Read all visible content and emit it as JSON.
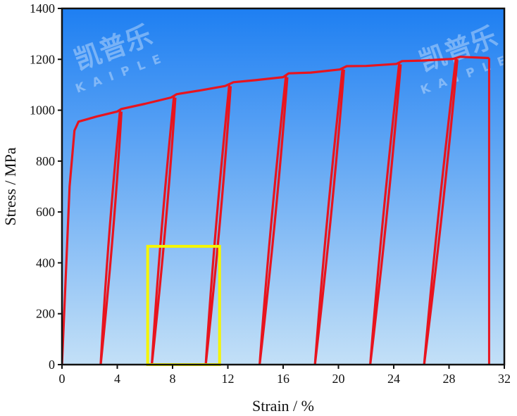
{
  "watermark": {
    "text_cn": "凯普乐",
    "text_en": "KAIPLE"
  },
  "chart_data": {
    "type": "line",
    "xlabel": "Strain / %",
    "ylabel": "Stress / MPa",
    "xlim": [
      0,
      32
    ],
    "ylim": [
      0,
      1400
    ],
    "xticks": [
      0,
      4,
      8,
      12,
      16,
      20,
      24,
      28,
      32
    ],
    "yticks": [
      0,
      200,
      400,
      600,
      800,
      1000,
      1200,
      1400
    ],
    "grid": false,
    "background": {
      "gradient_top": "#1e7ff2",
      "gradient_bottom": "#c3e0f7"
    },
    "series": [
      {
        "color": "#e8141e",
        "envelope": [
          [
            0.0,
            0
          ],
          [
            0.55,
            700
          ],
          [
            0.9,
            920
          ],
          [
            1.2,
            955
          ],
          [
            2.5,
            975
          ],
          [
            4.0,
            995
          ],
          [
            4.3,
            1005
          ],
          [
            6.0,
            1025
          ],
          [
            7.9,
            1050
          ],
          [
            8.3,
            1063
          ],
          [
            10.0,
            1078
          ],
          [
            11.8,
            1095
          ],
          [
            12.4,
            1110
          ],
          [
            14.0,
            1118
          ],
          [
            16.0,
            1130
          ],
          [
            16.4,
            1145
          ],
          [
            18.0,
            1148
          ],
          [
            20.1,
            1160
          ],
          [
            20.6,
            1173
          ],
          [
            22.0,
            1174
          ],
          [
            24.2,
            1182
          ],
          [
            24.6,
            1193
          ],
          [
            26.0,
            1195
          ],
          [
            28.3,
            1202
          ],
          [
            28.8,
            1210
          ],
          [
            30.9,
            1205
          ]
        ],
        "unload_reload_cycles": [
          {
            "peak_strain": 4.2,
            "peak_stress": 1000,
            "residual_strain": 2.8
          },
          {
            "peak_strain": 8.1,
            "peak_stress": 1055,
            "residual_strain": 6.5
          },
          {
            "peak_strain": 12.1,
            "peak_stress": 1100,
            "residual_strain": 10.4
          },
          {
            "peak_strain": 16.2,
            "peak_stress": 1135,
            "residual_strain": 14.3
          },
          {
            "peak_strain": 20.3,
            "peak_stress": 1165,
            "residual_strain": 18.3
          },
          {
            "peak_strain": 24.4,
            "peak_stress": 1186,
            "residual_strain": 22.3
          },
          {
            "peak_strain": 28.5,
            "peak_stress": 1206,
            "residual_strain": 26.2
          }
        ],
        "fracture": {
          "strain": 30.9,
          "stress": 1205
        }
      }
    ],
    "annotations": [
      {
        "type": "rectangle",
        "color": "#f5f500",
        "x_range": [
          6.2,
          11.4
        ],
        "y_range": [
          0,
          465
        ]
      }
    ]
  }
}
